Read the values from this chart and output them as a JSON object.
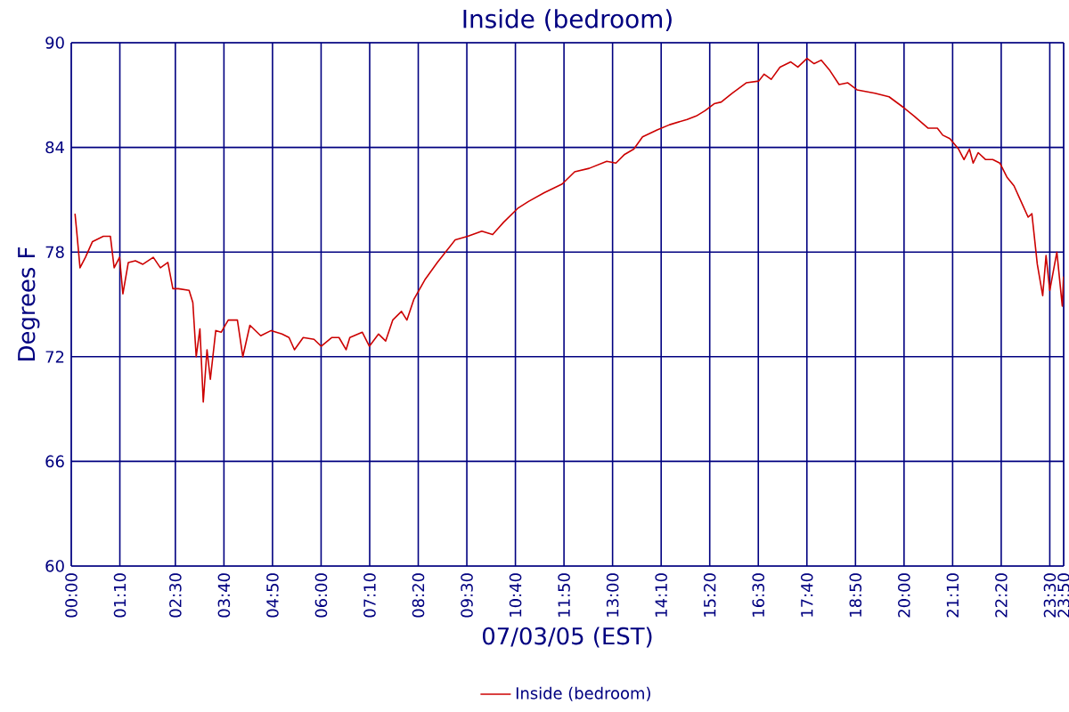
{
  "chart_data": {
    "type": "line",
    "title": "Inside (bedroom)",
    "xlabel": "07/03/05 (EST)",
    "ylabel": "Degrees F",
    "xlim": [
      0,
      23.8333
    ],
    "ylim": [
      60,
      90
    ],
    "xticks": [
      {
        "value": 0,
        "label": "00:00"
      },
      {
        "value": 1.1667,
        "label": "01:10"
      },
      {
        "value": 2.5,
        "label": "02:30"
      },
      {
        "value": 3.6667,
        "label": "03:40"
      },
      {
        "value": 4.8333,
        "label": "04:50"
      },
      {
        "value": 6,
        "label": "06:00"
      },
      {
        "value": 7.1667,
        "label": "07:10"
      },
      {
        "value": 8.3333,
        "label": "08:20"
      },
      {
        "value": 9.5,
        "label": "09:30"
      },
      {
        "value": 10.6667,
        "label": "10:40"
      },
      {
        "value": 11.8333,
        "label": "11:50"
      },
      {
        "value": 13,
        "label": "13:00"
      },
      {
        "value": 14.1667,
        "label": "14:10"
      },
      {
        "value": 15.3333,
        "label": "15:20"
      },
      {
        "value": 16.5,
        "label": "16:30"
      },
      {
        "value": 17.6667,
        "label": "17:40"
      },
      {
        "value": 18.8333,
        "label": "18:50"
      },
      {
        "value": 20,
        "label": "20:00"
      },
      {
        "value": 21.1667,
        "label": "21:10"
      },
      {
        "value": 22.3333,
        "label": "22:20"
      },
      {
        "value": 23.5,
        "label": "23:30"
      },
      {
        "value": 23.8333,
        "label": "23:50"
      }
    ],
    "yticks": [
      60,
      66,
      72,
      78,
      84,
      90
    ],
    "grid": true,
    "legend": "bottom",
    "marker": "none",
    "line_style": "solid",
    "series": [
      {
        "name": "Inside (bedroom)",
        "color": "#cc0000",
        "x": [
          0.09,
          0.13,
          0.21,
          0.34,
          0.51,
          0.77,
          0.94,
          1.03,
          1.16,
          1.24,
          1.37,
          1.54,
          1.72,
          1.97,
          2.14,
          2.32,
          2.44,
          2.57,
          2.83,
          2.92,
          3.0,
          3.09,
          3.17,
          3.26,
          3.34,
          3.47,
          3.6,
          3.77,
          3.99,
          4.12,
          4.29,
          4.55,
          4.8,
          5.06,
          5.23,
          5.36,
          5.57,
          5.83,
          6.0,
          6.26,
          6.43,
          6.6,
          6.69,
          6.99,
          7.16,
          7.38,
          7.55,
          7.72,
          7.93,
          8.06,
          8.23,
          8.49,
          8.79,
          9.22,
          9.52,
          9.86,
          10.12,
          10.38,
          10.72,
          10.98,
          11.36,
          11.79,
          12.09,
          12.44,
          12.86,
          13.08,
          13.29,
          13.51,
          13.72,
          14.07,
          14.37,
          14.79,
          15.01,
          15.22,
          15.44,
          15.61,
          15.87,
          16.21,
          16.51,
          16.64,
          16.81,
          17.02,
          17.28,
          17.45,
          17.67,
          17.84,
          18.01,
          18.22,
          18.44,
          18.65,
          18.87,
          19.3,
          19.64,
          19.98,
          20.24,
          20.58,
          20.8,
          20.93,
          21.1,
          21.31,
          21.44,
          21.57,
          21.66,
          21.78,
          21.96,
          22.13,
          22.3,
          22.47,
          22.64,
          22.81,
          22.98,
          23.07,
          23.2,
          23.33,
          23.41,
          23.5,
          23.67,
          23.8,
          23.83
        ],
        "values": [
          80.2,
          79.2,
          77.1,
          77.7,
          78.6,
          78.9,
          78.9,
          77.1,
          77.7,
          75.6,
          77.4,
          77.5,
          77.3,
          77.7,
          77.1,
          77.4,
          75.9,
          75.9,
          75.8,
          75.1,
          72.0,
          73.6,
          69.4,
          72.4,
          70.7,
          73.5,
          73.4,
          74.1,
          74.1,
          72.0,
          73.8,
          73.2,
          73.5,
          73.3,
          73.1,
          72.4,
          73.1,
          73.0,
          72.6,
          73.1,
          73.1,
          72.4,
          73.1,
          73.4,
          72.6,
          73.3,
          72.9,
          74.1,
          74.6,
          74.1,
          75.3,
          76.4,
          77.4,
          78.7,
          78.9,
          79.2,
          79.0,
          79.7,
          80.5,
          80.9,
          81.4,
          81.9,
          82.6,
          82.8,
          83.2,
          83.1,
          83.6,
          83.9,
          84.6,
          85.0,
          85.3,
          85.6,
          85.8,
          86.1,
          86.5,
          86.6,
          87.1,
          87.7,
          87.8,
          88.2,
          87.9,
          88.6,
          88.9,
          88.6,
          89.1,
          88.8,
          89.0,
          88.4,
          87.6,
          87.7,
          87.3,
          87.1,
          86.9,
          86.3,
          85.8,
          85.1,
          85.1,
          84.7,
          84.5,
          83.9,
          83.3,
          83.9,
          83.1,
          83.7,
          83.3,
          83.3,
          83.1,
          82.3,
          81.8,
          80.9,
          80.0,
          80.2,
          77.3,
          75.5,
          77.8,
          75.8,
          78.0,
          74.9,
          76.6
        ]
      }
    ]
  }
}
